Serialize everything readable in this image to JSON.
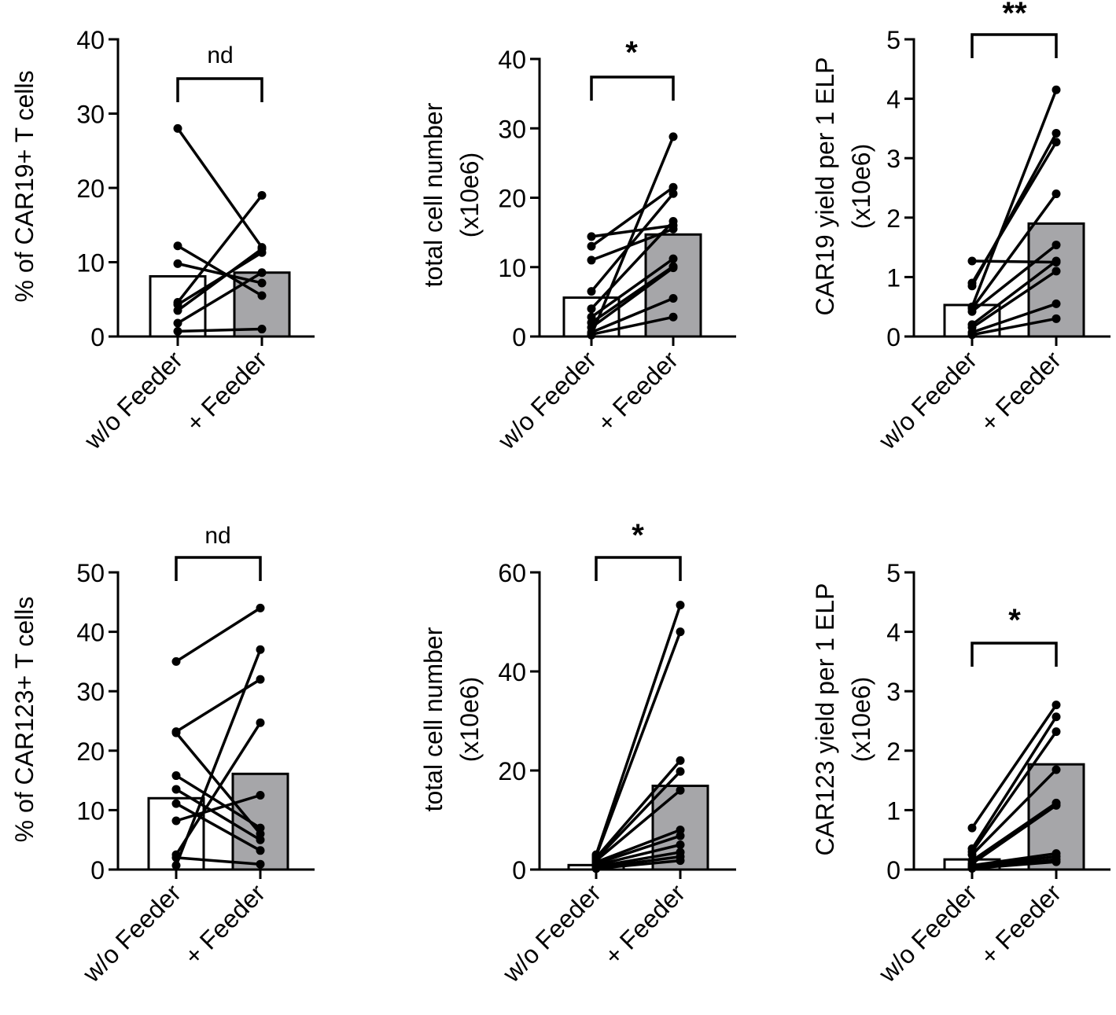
{
  "chart_data": [
    {
      "type": "bar",
      "id": "car19-percent",
      "ylabel": [
        "% of CAR19+ T cells"
      ],
      "categories": [
        "w/o Feeder",
        "+ Feeder"
      ],
      "ylim": [
        0,
        40
      ],
      "yticks": [
        0,
        10,
        20,
        30,
        40
      ],
      "bar_means": [
        8.1,
        8.6
      ],
      "bar_colors": [
        "#ffffff",
        "#a6a6a9"
      ],
      "paired_series": [
        [
          28,
          12
        ],
        [
          12.2,
          5.5
        ],
        [
          9.8,
          7.2
        ],
        [
          4.6,
          19
        ],
        [
          4.3,
          11.3
        ],
        [
          3.5,
          11.8
        ],
        [
          1.8,
          8.6
        ],
        [
          0.7,
          1
        ]
      ],
      "significance": "nd"
    },
    {
      "type": "bar",
      "id": "car19-total",
      "ylabel": [
        "total cell number",
        "(x10e6)"
      ],
      "categories": [
        "w/o Feeder",
        "+ Feeder"
      ],
      "ylim": [
        0,
        40
      ],
      "yticks": [
        0,
        10,
        20,
        30,
        40
      ],
      "bar_means": [
        5.6,
        14.7
      ],
      "bar_colors": [
        "#ffffff",
        "#a6a6a9"
      ],
      "paired_series": [
        [
          14.4,
          16
        ],
        [
          13,
          21.5
        ],
        [
          11,
          15.5
        ],
        [
          6.5,
          20.6
        ],
        [
          4,
          16.6
        ],
        [
          2.8,
          11.2
        ],
        [
          2,
          10.1
        ],
        [
          1.3,
          9.9
        ],
        [
          0.6,
          5.5
        ],
        [
          0.2,
          28.8
        ],
        [
          0.3,
          2.8
        ]
      ],
      "significance": "*"
    },
    {
      "type": "bar",
      "id": "car19-yield",
      "ylabel": [
        "CAR19 yield per 1 ELP",
        "(x10e6)"
      ],
      "categories": [
        "w/o Feeder",
        "+ Feeder"
      ],
      "ylim": [
        0,
        5
      ],
      "yticks": [
        0,
        1,
        2,
        3,
        4,
        5
      ],
      "bar_means": [
        0.53,
        1.9
      ],
      "bar_colors": [
        "#ffffff",
        "#a6a6a9"
      ],
      "paired_series": [
        [
          1.27,
          1.25
        ],
        [
          0.9,
          3.27
        ],
        [
          0.85,
          3.42
        ],
        [
          0.5,
          4.15
        ],
        [
          0.47,
          2.4
        ],
        [
          0.42,
          1.54
        ],
        [
          0.2,
          1.27
        ],
        [
          0.15,
          1.1
        ],
        [
          0.07,
          0.55
        ],
        [
          0.03,
          0.3
        ]
      ],
      "significance": "**"
    },
    {
      "type": "bar",
      "id": "car123-percent",
      "ylabel": [
        "% of CAR123+ T cells"
      ],
      "categories": [
        "w/o Feeder",
        "+ Feeder"
      ],
      "ylim": [
        0,
        50
      ],
      "yticks": [
        0,
        10,
        20,
        30,
        40,
        50
      ],
      "bar_means": [
        12,
        16.1
      ],
      "bar_colors": [
        "#ffffff",
        "#a6a6a9"
      ],
      "paired_series": [
        [
          35,
          44
        ],
        [
          23.2,
          32
        ],
        [
          23,
          6
        ],
        [
          15.8,
          7
        ],
        [
          13.5,
          5
        ],
        [
          11.1,
          3.2
        ],
        [
          8.2,
          12.5
        ],
        [
          2.5,
          24.7
        ],
        [
          2,
          0.9
        ],
        [
          0.7,
          37
        ]
      ],
      "significance": "nd"
    },
    {
      "type": "bar",
      "id": "car123-total",
      "ylabel": [
        "total cell number",
        "(x10e6)"
      ],
      "categories": [
        "w/o Feeder",
        "+ Feeder"
      ],
      "ylim": [
        0,
        60
      ],
      "yticks": [
        0,
        20,
        40,
        60
      ],
      "bar_means": [
        0.9,
        16.9
      ],
      "bar_colors": [
        "#ffffff",
        "#a6a6a9"
      ],
      "paired_series": [
        [
          3,
          53.4
        ],
        [
          2.7,
          48
        ],
        [
          2.4,
          22
        ],
        [
          2.1,
          19.8
        ],
        [
          1.8,
          16
        ],
        [
          1.5,
          8
        ],
        [
          1.2,
          6.8
        ],
        [
          0.9,
          5
        ],
        [
          0.6,
          3.5
        ],
        [
          0.4,
          2.6
        ],
        [
          0.2,
          1.8
        ]
      ],
      "significance": "*"
    },
    {
      "type": "bar",
      "id": "car123-yield",
      "ylabel": [
        "CAR123 yield per 1 ELP",
        "(x10e6)"
      ],
      "categories": [
        "w/o Feeder",
        "+ Feeder"
      ],
      "ylim": [
        0,
        5
      ],
      "yticks": [
        0,
        1,
        2,
        3,
        4,
        5
      ],
      "bar_means": [
        0.17,
        1.77
      ],
      "bar_colors": [
        "#ffffff",
        "#a6a6a9"
      ],
      "paired_series": [
        [
          0.7,
          2.77
        ],
        [
          0.35,
          2.57
        ],
        [
          0.3,
          2.32
        ],
        [
          0.25,
          1.68
        ],
        [
          0.15,
          1.12
        ],
        [
          0.1,
          1.08
        ],
        [
          0.07,
          0.27
        ],
        [
          0.05,
          0.22
        ],
        [
          0.03,
          0.17
        ],
        [
          0.02,
          0.13
        ]
      ],
      "significance": "*"
    }
  ]
}
